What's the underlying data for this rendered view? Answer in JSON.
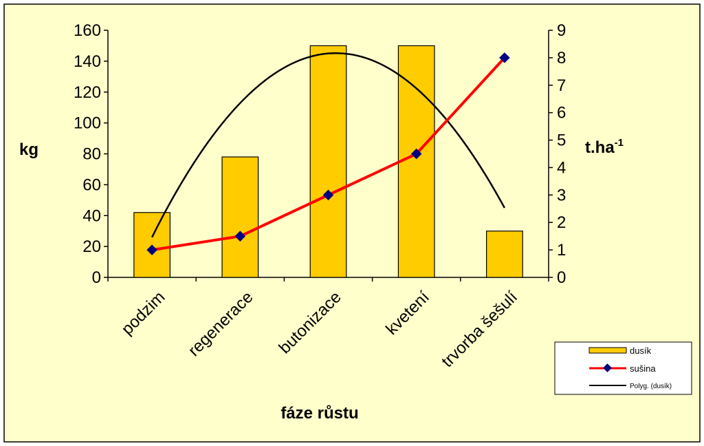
{
  "colors": {
    "background": "#FFFFCC",
    "bar_fill": "#FFCC00",
    "sushina_line": "#FF0000",
    "sushina_marker": "#000080",
    "poly_line": "#000000"
  },
  "chart_data": {
    "type": "bar",
    "categories": [
      "podzim",
      "regenerace",
      "butonizace",
      "kvetení",
      "trvorba šešulí"
    ],
    "xlabel": "fáze růstu",
    "ylabel": "kg",
    "y2label": "t.ha",
    "y2label_sup": "-1",
    "ylim": [
      0,
      160
    ],
    "yticks": [
      "0",
      "20",
      "40",
      "60",
      "80",
      "100",
      "120",
      "140",
      "160"
    ],
    "y2lim": [
      0,
      9
    ],
    "y2ticks": [
      "0",
      "1",
      "2",
      "3",
      "4",
      "5",
      "6",
      "7",
      "8",
      "9"
    ],
    "grid": false,
    "legend_position": "bottom-right",
    "series": [
      {
        "name": "dusík",
        "type": "bar",
        "axis": "left",
        "values": [
          42,
          78,
          150,
          150,
          30
        ]
      },
      {
        "name": "sušina",
        "type": "line",
        "axis": "right",
        "values": [
          1.0,
          1.5,
          3.0,
          4.5,
          8.0
        ]
      },
      {
        "name": "Polyg. (dusík)",
        "type": "trendline",
        "axis": "left",
        "start_value": 26,
        "end_value": 45,
        "peak_value": 145
      }
    ]
  }
}
